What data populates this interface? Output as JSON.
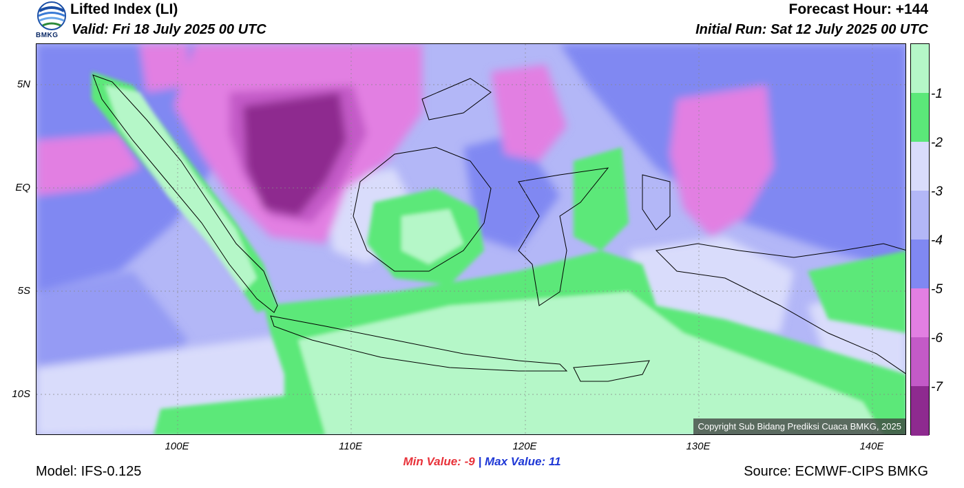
{
  "header": {
    "title": "Lifted Index (LI)",
    "valid": "Valid: Fri 18 July 2025 00 UTC",
    "forecast_hour": "Forecast Hour: +144",
    "initial_run": "Initial Run: Sat 12 July 2025 00 UTC",
    "logo_text": "BMKG"
  },
  "map": {
    "lat_labels": [
      "5N",
      "EQ",
      "5S",
      "10S"
    ],
    "lon_labels": [
      "100E",
      "110E",
      "120E",
      "130E",
      "140E"
    ],
    "copyright": "Copyright Sub Bidang Prediksi Cuaca BMKG, 2025"
  },
  "colorbar": {
    "labels": [
      "-1",
      "-2",
      "-3",
      "-4",
      "-5",
      "-6",
      "-7"
    ],
    "colors": [
      "#b5f7c8",
      "#5be879",
      "#d9dcfb",
      "#b3b7f7",
      "#8088f2",
      "#e27fe2",
      "#c35ac7",
      "#8e2a8f"
    ]
  },
  "stats": {
    "min_label": "Min Value:",
    "min_value": "-9",
    "separator": "|",
    "max_label": "Max Value:",
    "max_value": "11"
  },
  "footer": {
    "model": "Model: IFS-0.125",
    "source": "Source: ECMWF-CIPS BMKG"
  }
}
